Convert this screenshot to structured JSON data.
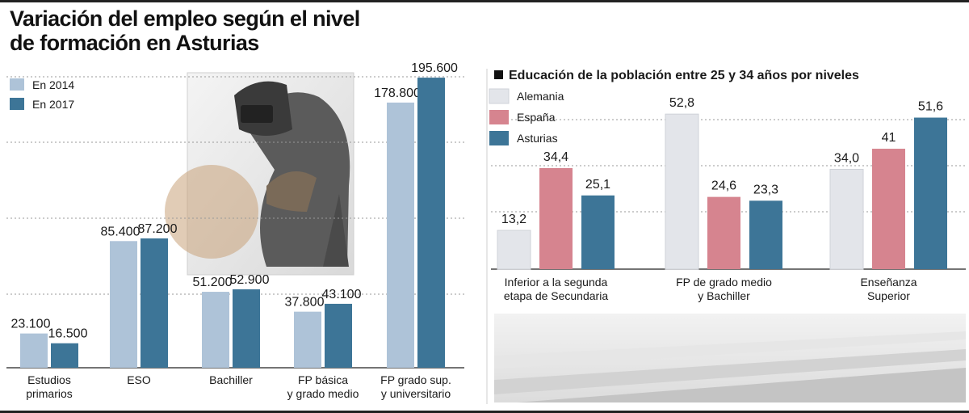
{
  "title_line1": "Variación del empleo según el nivel",
  "title_line2": "de formación en Asturias",
  "colors": {
    "left_2014": "#aec3d8",
    "left_2017": "#3d7597",
    "alemania": "#e3e5ea",
    "espana": "#d6848f",
    "asturias": "#3d7597"
  },
  "chart_data": [
    {
      "type": "bar",
      "title": "Variación del empleo según el nivel de formación en Asturias",
      "legend": [
        "En 2014",
        "En 2017"
      ],
      "legend_position": "top-left",
      "grid": true,
      "categories": [
        [
          "Estudios",
          "primarios"
        ],
        [
          "ESO"
        ],
        [
          "Bachiller"
        ],
        [
          "FP básica",
          "y grado medio"
        ],
        [
          "FP grado sup.",
          "y universitario"
        ]
      ],
      "series": [
        {
          "name": "En 2014",
          "values": [
            23100,
            85400,
            51200,
            37800,
            178800
          ],
          "labels": [
            "23.100",
            "85.400",
            "51.200",
            "37.800",
            "178.800"
          ]
        },
        {
          "name": "En 2017",
          "values": [
            16500,
            87200,
            52900,
            43100,
            195600
          ],
          "labels": [
            "16.500",
            "87.200",
            "52.900",
            "43.100",
            "195.600"
          ]
        }
      ],
      "ylim": [
        0,
        200000
      ]
    },
    {
      "type": "bar",
      "title": "Educación de la población entre 25 y 34 años por niveles",
      "legend": [
        "Alemania",
        "España",
        "Asturias"
      ],
      "legend_position": "top-left",
      "grid": true,
      "categories": [
        [
          "Inferior a la segunda",
          "etapa de Secundaria"
        ],
        [
          "FP de grado medio",
          "y Bachiller"
        ],
        [
          "Enseñanza",
          "Superior"
        ]
      ],
      "series": [
        {
          "name": "Alemania",
          "values": [
            13.2,
            52.8,
            34.0
          ],
          "labels": [
            "13,2",
            "52,8",
            "34,0"
          ]
        },
        {
          "name": "España",
          "values": [
            34.4,
            24.6,
            41
          ],
          "labels": [
            "34,4",
            "24,6",
            "41"
          ]
        },
        {
          "name": "Asturias",
          "values": [
            25.1,
            23.3,
            51.6
          ],
          "labels": [
            "25,1",
            "23,3",
            "51,6"
          ]
        }
      ],
      "ylim": [
        0,
        60
      ]
    }
  ]
}
